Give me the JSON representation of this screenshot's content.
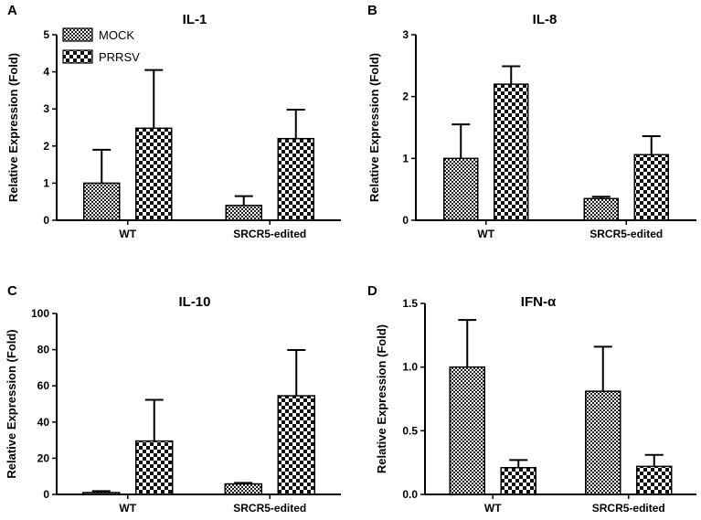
{
  "chart_data": [
    {
      "panel": "A",
      "type": "bar",
      "title": "IL-1",
      "xlabel": "",
      "ylabel": "Relative Expression (Fold)",
      "categories": [
        "WT",
        "SRCR5-edited"
      ],
      "ylim": [
        0,
        5
      ],
      "yticks": [
        0,
        1,
        2,
        3,
        4,
        5
      ],
      "series": [
        {
          "name": "MOCK",
          "values": [
            1.0,
            0.4
          ],
          "errors": [
            0.9,
            0.25
          ]
        },
        {
          "name": "PRRSV",
          "values": [
            2.48,
            2.2
          ],
          "errors": [
            1.57,
            0.78
          ]
        }
      ],
      "legend": {
        "position": "top-left",
        "entries": [
          "MOCK",
          "PRRSV"
        ]
      }
    },
    {
      "panel": "B",
      "type": "bar",
      "title": "IL-8",
      "xlabel": "",
      "ylabel": "Relative Expression (Fold)",
      "categories": [
        "WT",
        "SRCR5-edited"
      ],
      "ylim": [
        0,
        3
      ],
      "yticks": [
        0,
        1,
        2,
        3
      ],
      "series": [
        {
          "name": "MOCK",
          "values": [
            1.0,
            0.35
          ],
          "errors": [
            0.55,
            0.03
          ]
        },
        {
          "name": "PRRSV",
          "values": [
            2.2,
            1.06
          ],
          "errors": [
            0.29,
            0.3
          ]
        }
      ]
    },
    {
      "panel": "C",
      "type": "bar",
      "title": "IL-10",
      "xlabel": "",
      "ylabel": "Relative Expression (Fold)",
      "categories": [
        "WT",
        "SRCR5-edited"
      ],
      "ylim": [
        0,
        100
      ],
      "yticks": [
        0,
        20,
        40,
        60,
        80,
        100
      ],
      "series": [
        {
          "name": "MOCK",
          "values": [
            1.0,
            5.8
          ],
          "errors": [
            0.8,
            0.6
          ]
        },
        {
          "name": "PRRSV",
          "values": [
            29.5,
            54.5
          ],
          "errors": [
            22.8,
            25.3
          ]
        }
      ]
    },
    {
      "panel": "D",
      "type": "bar",
      "title": "IFN-α",
      "xlabel": "",
      "ylabel": "Relative Expression (Fold)",
      "categories": [
        "WT",
        "SRCR5-edited"
      ],
      "ylim": [
        0,
        1.5
      ],
      "yticks": [
        "0.0",
        "0.5",
        "1.0",
        "1.5"
      ],
      "series": [
        {
          "name": "MOCK",
          "values": [
            1.0,
            0.81
          ],
          "errors": [
            0.37,
            0.35
          ]
        },
        {
          "name": "PRRSV",
          "values": [
            0.21,
            0.22
          ],
          "errors": [
            0.06,
            0.09
          ]
        }
      ]
    }
  ]
}
